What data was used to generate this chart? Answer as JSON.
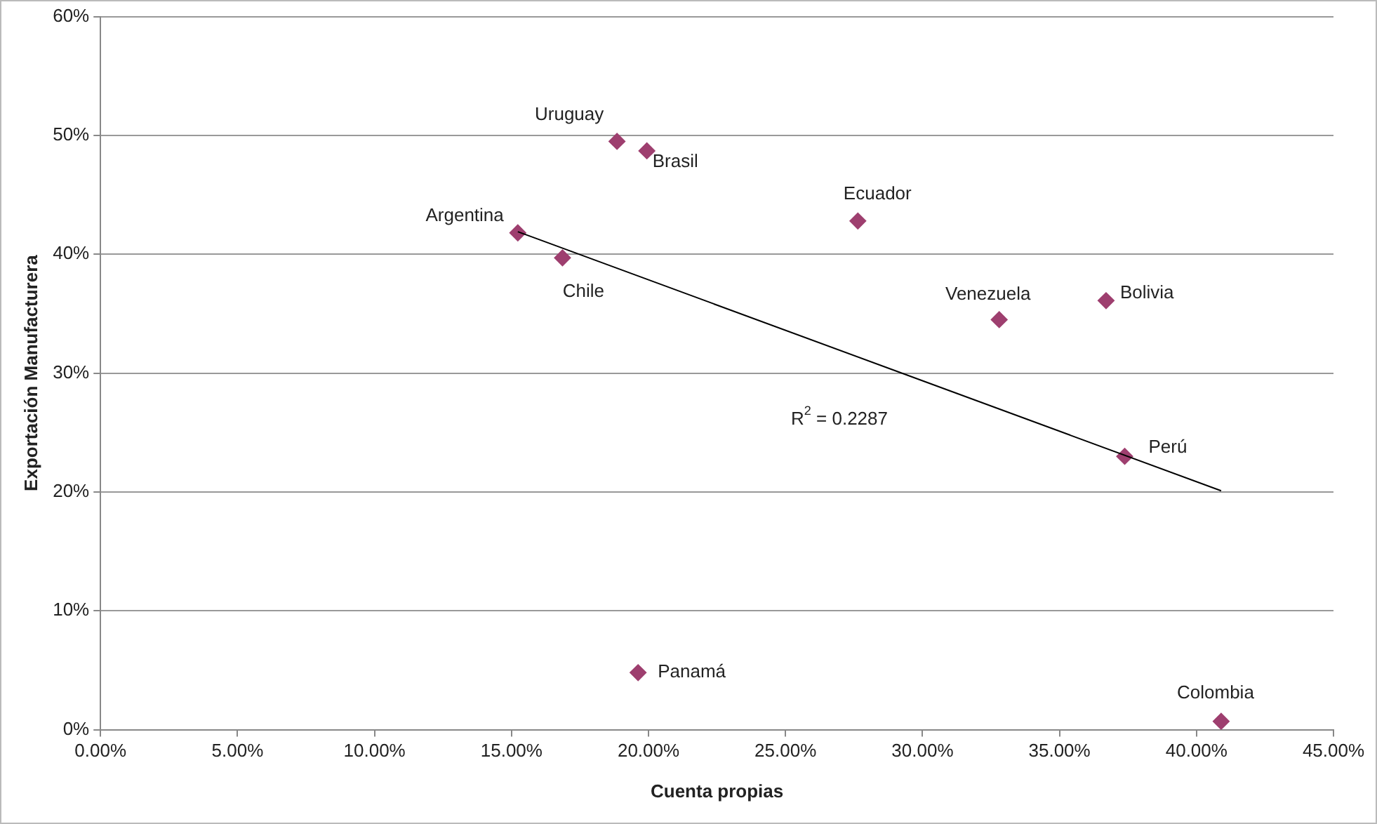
{
  "chart_data": {
    "type": "scatter",
    "xlabel": "Cuenta propias",
    "ylabel": "Exportación Manufacturera",
    "xlim": [
      0,
      45
    ],
    "xticks": [
      {
        "value": 0,
        "label": "0.00%"
      },
      {
        "value": 5,
        "label": "5.00%"
      },
      {
        "value": 10,
        "label": "10.00%"
      },
      {
        "value": 15,
        "label": "15.00%"
      },
      {
        "value": 20,
        "label": "20.00%"
      },
      {
        "value": 25,
        "label": "25.00%"
      },
      {
        "value": 30,
        "label": "30.00%"
      },
      {
        "value": 35,
        "label": "35.00%"
      },
      {
        "value": 40,
        "label": "40.00%"
      },
      {
        "value": 45,
        "label": "45.00%"
      }
    ],
    "ylim": [
      0,
      60
    ],
    "yticks": [
      {
        "value": 0,
        "label": "0%"
      },
      {
        "value": 10,
        "label": "10%"
      },
      {
        "value": 20,
        "label": "20%"
      },
      {
        "value": 30,
        "label": "30%"
      },
      {
        "value": 40,
        "label": "40%"
      },
      {
        "value": 50,
        "label": "50%"
      },
      {
        "value": 60,
        "label": "60%"
      }
    ],
    "grid": "y",
    "legend": false,
    "marker": "diamond",
    "series": [
      {
        "type": "scatter",
        "color": "#9e3f6f",
        "x": [
          18.85,
          19.94,
          15.23,
          16.86,
          27.64,
          32.8,
          36.7,
          37.38,
          19.62,
          40.9
        ],
        "values": [
          49.5,
          48.7,
          41.8,
          39.7,
          42.8,
          34.5,
          36.1,
          23.0,
          4.8,
          0.7
        ]
      },
      {
        "type": "line",
        "color": "#000000",
        "marker": "none",
        "x": [
          15.23,
          40.9
        ],
        "values": [
          41.9,
          20.1
        ]
      }
    ],
    "annotations": [
      {
        "text": "Uruguay",
        "x": 18.85,
        "y": 49.5
      },
      {
        "text": "Brasil",
        "x": 19.94,
        "y": 48.7
      },
      {
        "text": "Argentina",
        "x": 15.23,
        "y": 41.8
      },
      {
        "text": "Chile",
        "x": 16.86,
        "y": 39.7
      },
      {
        "text": "Ecuador",
        "x": 27.64,
        "y": 42.8
      },
      {
        "text": "Venezuela",
        "x": 32.8,
        "y": 34.5
      },
      {
        "text": "Bolivia",
        "x": 36.7,
        "y": 36.1
      },
      {
        "text": "Perú",
        "x": 37.38,
        "y": 23.0
      },
      {
        "text": "Panamá",
        "x": 19.62,
        "y": 4.8
      },
      {
        "text": "Colombia",
        "x": 40.9,
        "y": 0.7
      },
      "R$^{2}$ = 0.2287"
    ]
  }
}
